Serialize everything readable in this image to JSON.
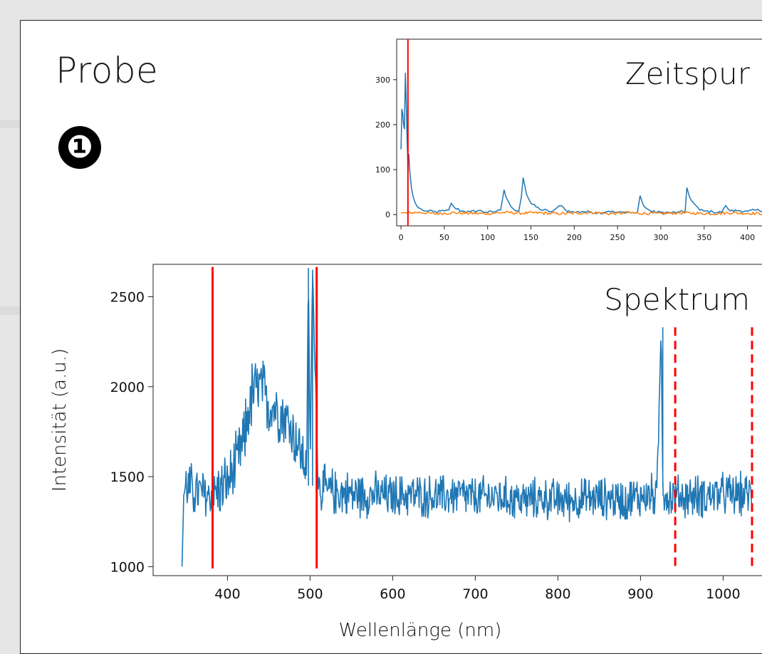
{
  "page": {
    "title": "Probe",
    "marker": "❶"
  },
  "colors": {
    "blue": "#1f77b4",
    "orange": "#ff7f0e",
    "red": "#ff0000"
  },
  "chart_data": [
    {
      "type": "line",
      "title": "Zeitspur",
      "xlabel": "",
      "ylabel": "",
      "xlim": [
        -5,
        425
      ],
      "ylim": [
        -25,
        390
      ],
      "xticks": [
        "0",
        "50",
        "100",
        "150",
        "200",
        "250",
        "300",
        "350",
        "400"
      ],
      "yticks": [
        "0",
        "100",
        "200",
        "300"
      ],
      "grid": false,
      "vline": 8,
      "series": [
        {
          "color": "blue",
          "x": [
            0,
            1,
            2,
            3,
            4,
            5,
            6,
            7,
            8,
            9,
            10,
            12,
            14,
            16,
            18,
            20,
            25,
            30,
            40,
            50,
            55,
            58,
            62,
            70,
            80,
            90,
            100,
            110,
            115,
            119,
            121,
            125,
            130,
            136,
            139,
            141,
            145,
            150,
            160,
            170,
            175,
            180,
            185,
            190,
            200,
            210,
            220,
            230,
            240,
            250,
            260,
            270,
            273,
            276,
            280,
            285,
            290,
            300,
            310,
            320,
            328,
            330,
            333,
            338,
            345,
            350,
            360,
            370,
            373,
            375,
            380,
            390,
            400,
            410,
            420
          ],
          "values": [
            145,
            235,
            225,
            200,
            190,
            315,
            250,
            170,
            110,
            135,
            100,
            60,
            40,
            28,
            20,
            15,
            10,
            8,
            6,
            8,
            10,
            25,
            15,
            8,
            6,
            9,
            5,
            7,
            10,
            55,
            40,
            25,
            12,
            8,
            40,
            82,
            45,
            25,
            12,
            8,
            7,
            15,
            20,
            10,
            5,
            7,
            5,
            4,
            8,
            4,
            6,
            3,
            5,
            42,
            20,
            12,
            6,
            5,
            4,
            5,
            6,
            60,
            40,
            25,
            10,
            8,
            6,
            5,
            15,
            20,
            8,
            9,
            7,
            10,
            9
          ]
        },
        {
          "color": "orange",
          "x": [
            0,
            20,
            40,
            60,
            80,
            100,
            120,
            140,
            160,
            180,
            200,
            220,
            240,
            260,
            280,
            300,
            320,
            340,
            360,
            380,
            400,
            420
          ],
          "values": [
            3,
            5,
            2,
            4,
            3,
            2,
            5,
            3,
            4,
            2,
            3,
            5,
            2,
            4,
            3,
            2,
            4,
            3,
            2,
            4,
            3,
            2
          ]
        }
      ]
    },
    {
      "type": "line",
      "title": "Spektrum",
      "xlabel": "Wellenlänge (nm)",
      "ylabel": "Intensität (a.u.)",
      "xlim": [
        310,
        1060
      ],
      "ylim": [
        950,
        2680
      ],
      "xticks": [
        "400",
        "500",
        "600",
        "700",
        "800",
        "900",
        "1000"
      ],
      "yticks": [
        "1000",
        "1500",
        "2000",
        "2500"
      ],
      "grid": false,
      "vlines_solid": [
        382,
        508
      ],
      "vlines_dashed": [
        942,
        1035
      ],
      "series": [
        {
          "color": "blue",
          "x": [
            345,
            347,
            350,
            360,
            370,
            380,
            390,
            400,
            410,
            420,
            425,
            430,
            435,
            440,
            450,
            460,
            470,
            480,
            490,
            496,
            498,
            500,
            503,
            510,
            520,
            540,
            560,
            580,
            600,
            620,
            640,
            660,
            680,
            700,
            720,
            740,
            760,
            780,
            800,
            820,
            840,
            860,
            880,
            900,
            920,
            925,
            927,
            929,
            935,
            950,
            970,
            990,
            1010,
            1035
          ],
          "values": [
            1000,
            1400,
            1450,
            1420,
            1400,
            1390,
            1430,
            1460,
            1560,
            1700,
            1860,
            1950,
            1980,
            2000,
            1900,
            1880,
            1830,
            1740,
            1620,
            1560,
            2660,
            1580,
            2650,
            1450,
            1420,
            1410,
            1400,
            1400,
            1390,
            1400,
            1390,
            1390,
            1400,
            1380,
            1390,
            1380,
            1370,
            1380,
            1370,
            1370,
            1380,
            1380,
            1370,
            1390,
            1400,
            2330,
            1450,
            1400,
            1390,
            1390,
            1390,
            1400,
            1400,
            1400
          ],
          "noise": [
            0,
            160,
            170,
            175,
            175,
            180,
            190,
            200,
            200,
            210,
            220,
            240,
            230,
            220,
            210,
            205,
            200,
            190,
            185,
            180,
            0,
            180,
            0,
            160,
            155,
            150,
            150,
            145,
            140,
            140,
            140,
            140,
            140,
            140,
            135,
            135,
            135,
            135,
            135,
            135,
            135,
            135,
            140,
            140,
            140,
            0,
            140,
            140,
            140,
            140,
            140,
            140,
            140,
            140
          ]
        }
      ]
    }
  ]
}
